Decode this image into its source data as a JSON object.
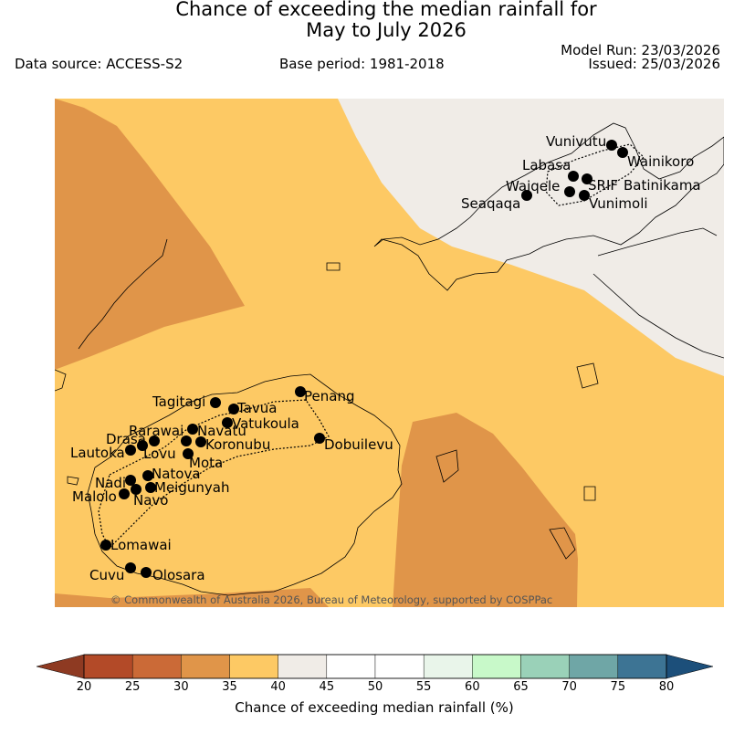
{
  "title": {
    "line1": "Chance of exceeding the median rainfall for",
    "line2": "May to July 2026"
  },
  "data_source": "Data source: ACCESS-S2",
  "base_period": "Base period: 1981-2018",
  "model_run": "Model Run: 23/03/2026",
  "issued": "Issued: 25/03/2026",
  "copyright": "© Commonwealth of Australia 2026, Bureau of Meteorology, supported by COSPPac",
  "places": [
    "Vunivutu",
    "Wainikoro",
    "Labasa",
    "Waiqele",
    "SRIF",
    "Batinikama",
    "Seaqaqa",
    "Vunimoli",
    "Tagitagi",
    "Tavua",
    "Penang",
    "Rarawai",
    "Navatu",
    "Vatukoula",
    "Drasa",
    "Lautoka",
    "Lovu",
    "Koronubu",
    "Dobuilevu",
    "Mota",
    "Natova",
    "Nadi",
    "Meigunyah",
    "Malolo",
    "Navo",
    "Lomawai",
    "Cuvu",
    "Olosara"
  ],
  "colorbar": {
    "ticks": [
      "20",
      "25",
      "30",
      "35",
      "40",
      "45",
      "50",
      "55",
      "60",
      "65",
      "70",
      "75",
      "80"
    ],
    "colors": [
      "#b34a28",
      "#cb6a37",
      "#e09549",
      "#fdc964",
      "#f0ece7",
      "#ffffff",
      "#ffffff",
      "#e9f5ea",
      "#c8f9c9",
      "#9ad1b8",
      "#6fa6a6",
      "#3d7494"
    ],
    "under_color": "#8e3a22",
    "over_color": "#1c4f7a",
    "label": "Chance of exceeding median rainfall (%)"
  }
}
